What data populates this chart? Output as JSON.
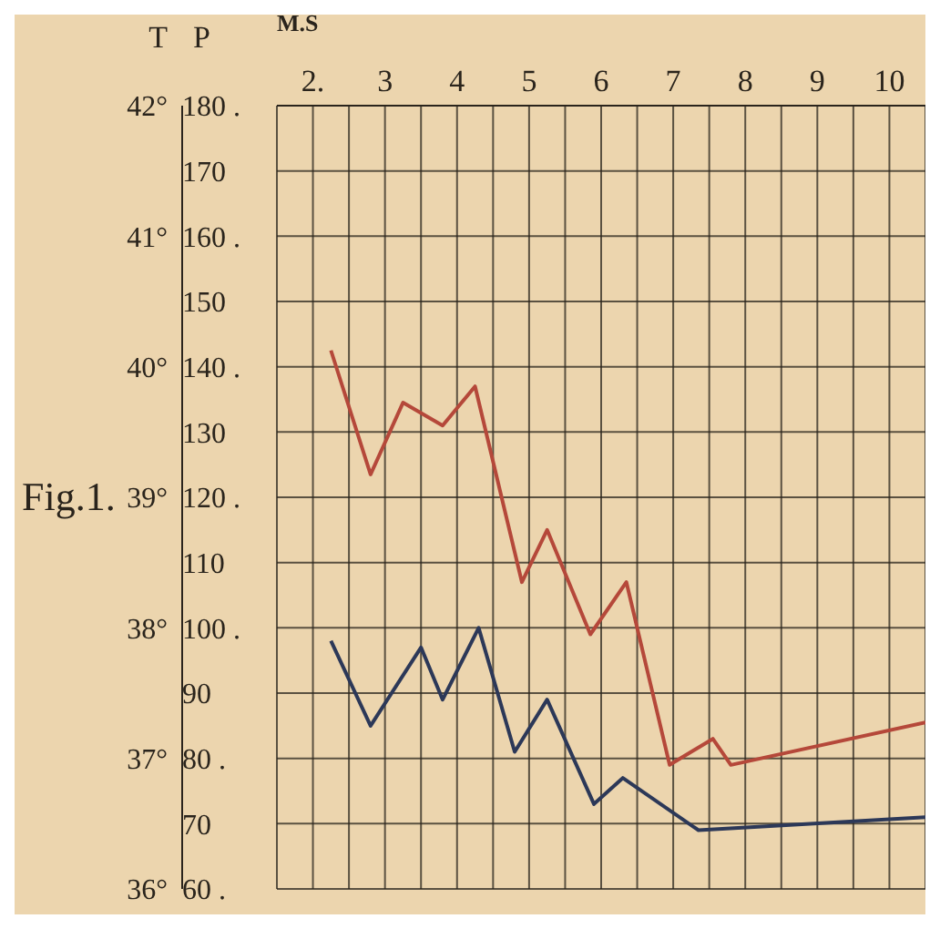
{
  "chart_data": {
    "type": "line",
    "title": "Fig.1.",
    "xlabel": "M.S",
    "ylabel": "P",
    "y2label": "T",
    "xlim": [
      2,
      11
    ],
    "xticks": [
      {
        "value": 2,
        "label": null
      },
      {
        "value": 2.5,
        "label": "2."
      },
      {
        "value": 3,
        "label": null
      },
      {
        "value": 3.5,
        "label": "3"
      },
      {
        "value": 4,
        "label": null
      },
      {
        "value": 4.5,
        "label": "4"
      },
      {
        "value": 5,
        "label": null
      },
      {
        "value": 5.5,
        "label": "5"
      },
      {
        "value": 6,
        "label": null
      },
      {
        "value": 6.5,
        "label": "6"
      },
      {
        "value": 7,
        "label": null
      },
      {
        "value": 7.5,
        "label": "7"
      },
      {
        "value": 8,
        "label": null
      },
      {
        "value": 8.5,
        "label": "8"
      },
      {
        "value": 9,
        "label": null
      },
      {
        "value": 9.5,
        "label": "9"
      },
      {
        "value": 10,
        "label": null
      },
      {
        "value": 10.5,
        "label": "10"
      },
      {
        "value": 11,
        "label": null
      }
    ],
    "ylim": [
      60,
      180
    ],
    "yticks": [
      {
        "value": 60,
        "label": "60 ."
      },
      70,
      {
        "value": 80,
        "label": "80 ."
      },
      90,
      {
        "value": 100,
        "label": "100 ."
      },
      110,
      {
        "value": 120,
        "label": "120 ."
      },
      130,
      {
        "value": 140,
        "label": "140 ."
      },
      150,
      {
        "value": 160,
        "label": "160 ."
      },
      170,
      {
        "value": 180,
        "label": "180 ."
      }
    ],
    "y2lim": [
      36,
      42
    ],
    "y2ticks": [
      {
        "value": 36,
        "label": "36°"
      },
      {
        "value": 37,
        "label": "37°"
      },
      {
        "value": 38,
        "label": "38°"
      },
      {
        "value": 39,
        "label": "39°"
      },
      {
        "value": 40,
        "label": "40°"
      },
      {
        "value": 41,
        "label": "41°"
      },
      {
        "value": 42,
        "label": "42°"
      }
    ],
    "grid": true,
    "marker": "none",
    "line_style": "solid",
    "series": [
      {
        "color": "#b5483a",
        "x": [
          2.75,
          3.3,
          3.75,
          4.3,
          4.75,
          5.4,
          5.75,
          6.35,
          6.85,
          7.45,
          8.05,
          8.3,
          11
        ],
        "values": [
          142.5,
          123.5,
          134.5,
          131,
          137,
          107,
          115,
          99,
          107,
          79,
          83,
          79,
          85.5
        ]
      },
      {
        "color": "#2c3858",
        "axis": "y2",
        "x": [
          2.75,
          3.3,
          4,
          4.3,
          4.8,
          5.3,
          5.75,
          6.4,
          6.8,
          7.85,
          11
        ],
        "values": [
          37.9,
          37.25,
          37.85,
          37.45,
          38,
          37.05,
          37.45,
          36.65,
          36.85,
          36.45,
          36.55
        ]
      }
    ]
  }
}
